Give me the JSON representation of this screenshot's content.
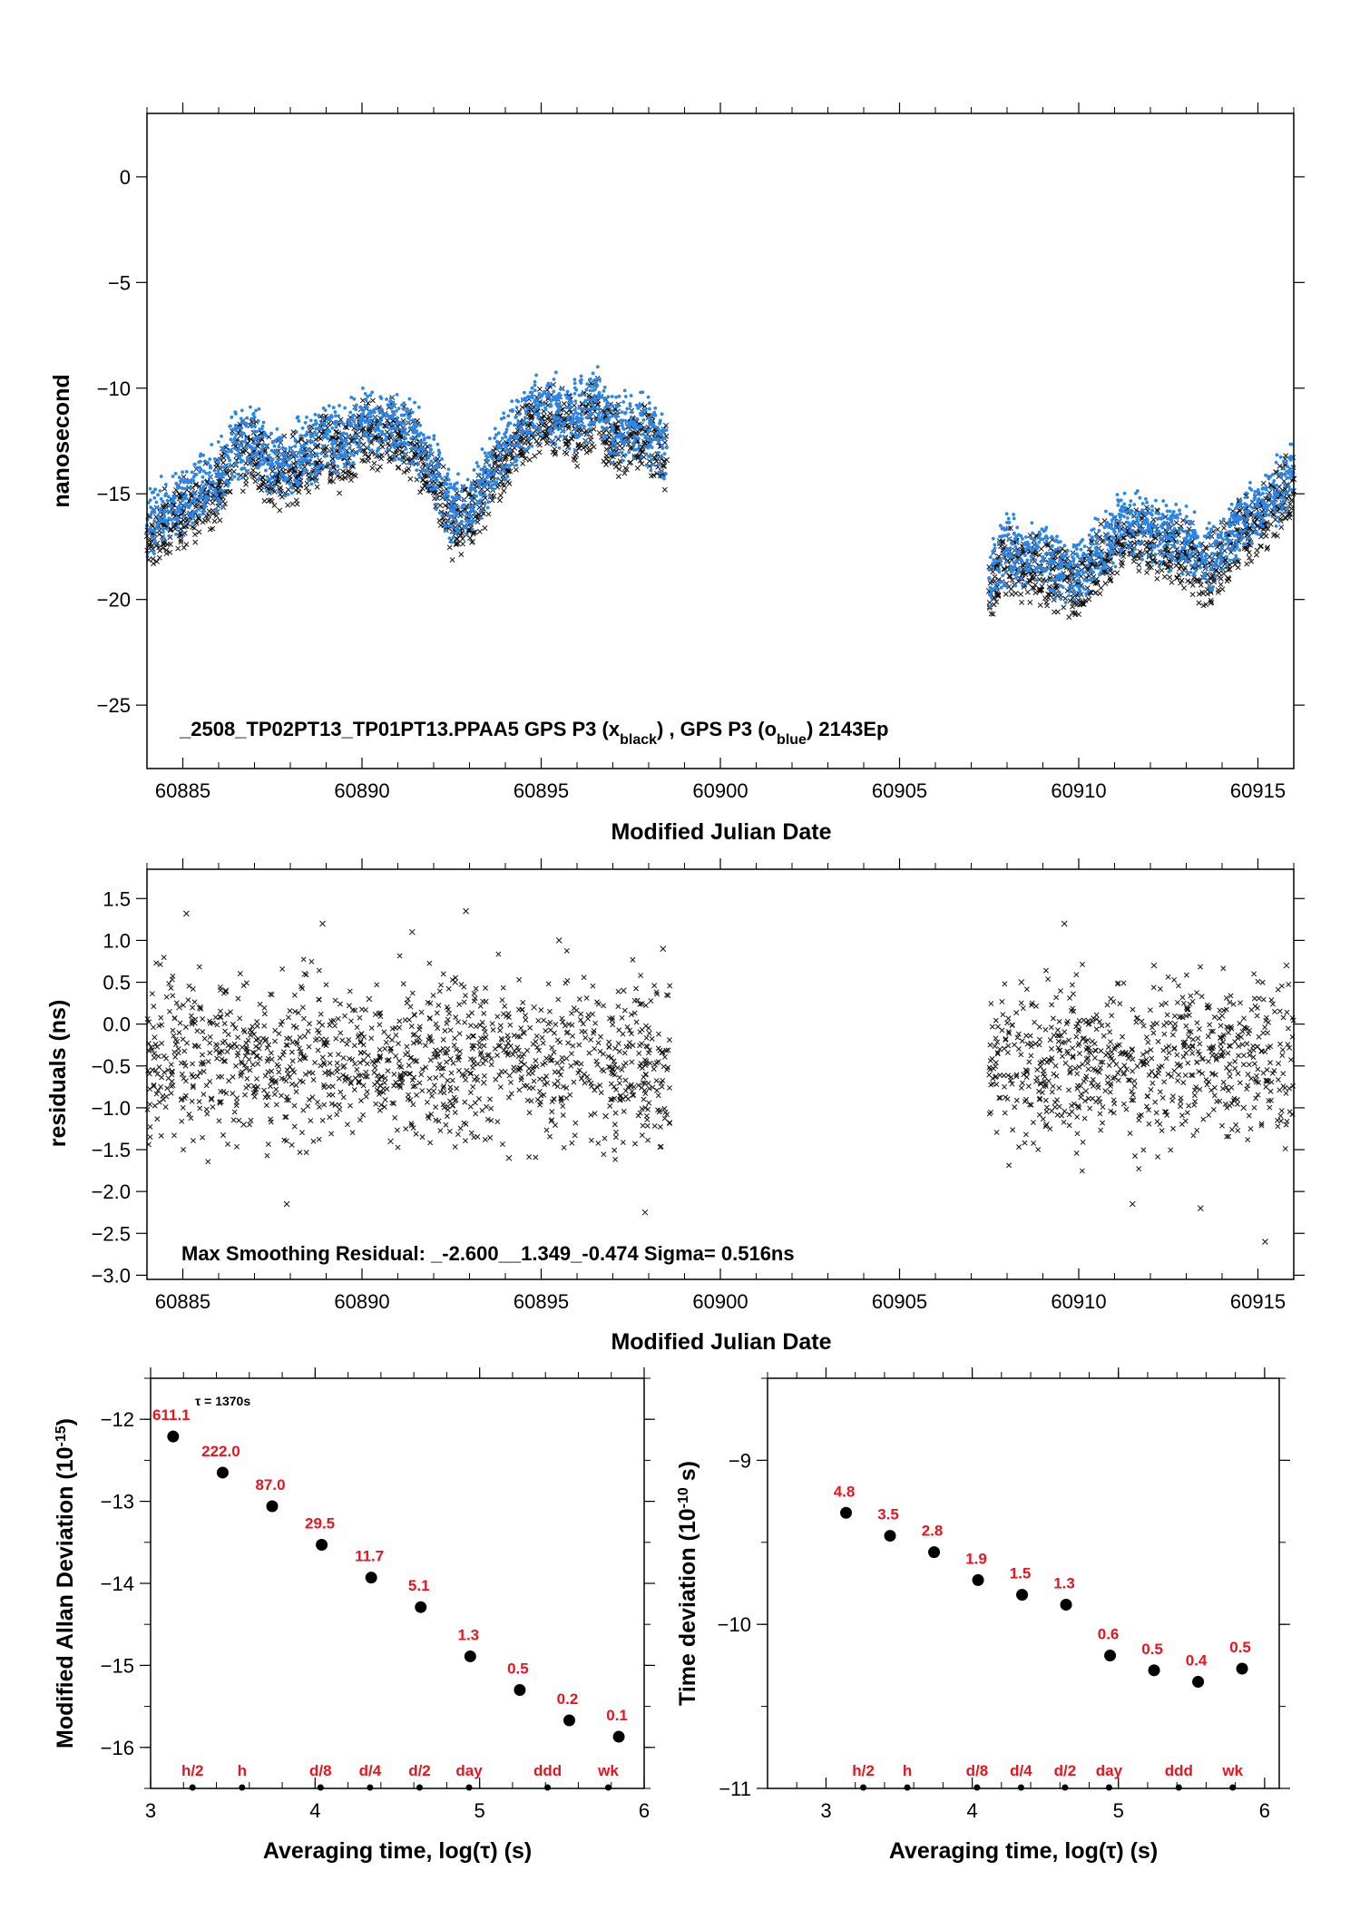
{
  "colors": {
    "black_series": "#111111",
    "blue_series": "#2a86e8",
    "label_red": "#e8141e",
    "frame": "#000000"
  },
  "chart_data": [
    {
      "type": "scatter",
      "title": "_2508_TP02PT13_TP01PT13.PPAA5     GPS P3 (x",
      "title_parts": {
        "a": "_2508_TP02PT13_TP01PT13.PPAA5     GPS P3 (x",
        "a_sub": "black",
        "b": ") ,  GPS P3 (o",
        "b_sub": "blue",
        "c": ")  2143Ep"
      },
      "xlabel": "Modified Julian Date",
      "ylabel": "nanosecond",
      "xlim": [
        60884,
        60916
      ],
      "ylim": [
        -28,
        3
      ],
      "xticks": [
        "60885",
        "60890",
        "60895",
        "60900",
        "60905",
        "60910",
        "60915"
      ],
      "yticks": [
        "0",
        "−5",
        "−10",
        "−15",
        "−20",
        "−25"
      ],
      "series": [
        {
          "name": "GPS P3 (x black)",
          "marker": "x",
          "x": [
            60884.0,
            60884.5,
            60885.0,
            60885.5,
            60886.0,
            60886.5,
            60887.0,
            60887.5,
            60888.0,
            60888.5,
            60889.0,
            60889.5,
            60890.0,
            60890.5,
            60891.0,
            60891.5,
            60892.0,
            60892.5,
            60893.0,
            60893.5,
            60894.0,
            60894.5,
            60895.0,
            60895.5,
            60896.0,
            60896.5,
            60897.0,
            60897.5,
            60898.0,
            60898.5,
            60907.5,
            60908.0,
            60908.5,
            60909.0,
            60909.5,
            60910.0,
            60910.5,
            60911.0,
            60911.5,
            60912.0,
            60912.5,
            60913.0,
            60913.5,
            60914.0,
            60914.5,
            60915.0,
            60915.5,
            60916.0
          ],
          "y": [
            -17.0,
            -16.4,
            -15.9,
            -15.4,
            -14.8,
            -13.2,
            -13.0,
            -14.2,
            -13.9,
            -13.5,
            -12.8,
            -13.3,
            -12.0,
            -12.3,
            -12.2,
            -13.0,
            -14.4,
            -16.4,
            -16.2,
            -14.8,
            -13.3,
            -12.2,
            -11.4,
            -11.7,
            -12.0,
            -11.1,
            -12.5,
            -12.3,
            -12.6,
            -13.4,
            -19.6,
            -18.2,
            -18.5,
            -18.6,
            -19.0,
            -19.3,
            -18.4,
            -17.4,
            -17.0,
            -17.3,
            -17.7,
            -17.8,
            -18.8,
            -18.1,
            -16.8,
            -16.5,
            -15.6,
            -14.3
          ]
        },
        {
          "name": "GPS P3 (o blue)",
          "marker": "o",
          "x": [
            60884.0,
            60884.5,
            60885.0,
            60885.5,
            60886.0,
            60886.5,
            60887.0,
            60887.5,
            60888.0,
            60888.5,
            60889.0,
            60889.5,
            60890.0,
            60890.5,
            60891.0,
            60891.5,
            60892.0,
            60892.5,
            60893.0,
            60893.5,
            60894.0,
            60894.5,
            60895.0,
            60895.5,
            60896.0,
            60896.5,
            60897.0,
            60897.5,
            60898.0,
            60898.5,
            60907.5,
            60908.0,
            60908.5,
            60909.0,
            60909.5,
            60910.0,
            60910.5,
            60911.0,
            60911.5,
            60912.0,
            60912.5,
            60913.0,
            60913.5,
            60914.0,
            60914.5,
            60915.0,
            60915.5,
            60916.0
          ],
          "y": [
            -16.5,
            -15.8,
            -15.3,
            -14.8,
            -14.2,
            -12.6,
            -12.4,
            -13.6,
            -13.3,
            -12.9,
            -12.2,
            -12.7,
            -11.4,
            -11.7,
            -11.6,
            -12.4,
            -13.8,
            -15.8,
            -15.6,
            -14.2,
            -12.7,
            -11.6,
            -10.8,
            -11.1,
            -11.4,
            -10.5,
            -11.9,
            -11.7,
            -12.0,
            -12.8,
            -19.0,
            -17.6,
            -17.9,
            -18.0,
            -18.4,
            -18.7,
            -17.8,
            -16.8,
            -16.4,
            -16.7,
            -17.1,
            -17.2,
            -18.2,
            -17.5,
            -16.2,
            -15.9,
            -15.0,
            -13.7
          ]
        }
      ]
    },
    {
      "type": "scatter",
      "xlabel": "Modified Julian Date",
      "ylabel": "residuals (ns)",
      "xlim": [
        60884,
        60916
      ],
      "ylim": [
        -3.05,
        1.85
      ],
      "xticks": [
        "60885",
        "60890",
        "60895",
        "60900",
        "60905",
        "60910",
        "60915"
      ],
      "yticks": [
        "1.5",
        "1.0",
        "0.5",
        "0.0",
        "−0.5",
        "−1.0",
        "−1.5",
        "−2.0",
        "−2.5",
        "−3.0"
      ],
      "annotation": "Max Smoothing Residual: _-2.600__1.349_-0.474  Sigma= 0.516ns",
      "series": [
        {
          "name": "residuals",
          "marker": "x",
          "x": [
            60884.2,
            60884.9,
            60885.1,
            60885.8,
            60886.2,
            60886.7,
            60887.3,
            60887.9,
            60888.4,
            60888.9,
            60889.5,
            60890.2,
            60890.8,
            60891.4,
            60892.0,
            60892.6,
            60892.9,
            60893.4,
            60894.1,
            60894.8,
            60895.5,
            60896.2,
            60896.8,
            60897.3,
            60897.9,
            60898.4,
            60907.8,
            60908.4,
            60909.1,
            60909.6,
            60910.2,
            60910.9,
            60911.5,
            60912.1,
            60912.8,
            60913.4,
            60914.0,
            60914.6,
            60915.2,
            60915.8
          ],
          "y": [
            -0.4,
            0.2,
            1.32,
            -0.9,
            0.4,
            -1.2,
            -0.2,
            -2.15,
            0.6,
            1.2,
            -0.5,
            0.3,
            -1.4,
            1.1,
            -0.8,
            0.5,
            1.35,
            -0.7,
            -1.6,
            0.2,
            1.0,
            -0.6,
            -1.1,
            0.4,
            -2.25,
            0.9,
            -0.3,
            0.5,
            -1.2,
            1.2,
            -0.8,
            0.3,
            -2.15,
            0.7,
            -0.5,
            -2.2,
            0.1,
            -1.0,
            -2.6,
            0.7
          ]
        }
      ]
    },
    {
      "type": "scatter",
      "xlabel": "Averaging time, log(τ) (s)",
      "ylabel": "Modified Allan Deviation (10",
      "ylabel_sup": "-15",
      "ylabel_tail": ")",
      "xlim": [
        3,
        6
      ],
      "ylim": [
        -16.5,
        -11.5
      ],
      "xticks": [
        "3",
        "4",
        "5",
        "6"
      ],
      "yticks": [
        "−12",
        "−13",
        "−14",
        "−15",
        "−16"
      ],
      "tau_note": "τ = 1370s",
      "x": [
        3.137,
        3.438,
        3.739,
        4.04,
        4.341,
        4.642,
        4.943,
        5.244,
        5.545,
        5.846
      ],
      "y": [
        -12.21,
        -12.65,
        -13.06,
        -13.53,
        -13.93,
        -14.29,
        -14.89,
        -15.3,
        -15.67,
        -15.87
      ],
      "point_labels": [
        "611.1",
        "222.0",
        "87.0",
        "29.5",
        "11.7",
        "5.1",
        "1.3",
        "0.5",
        "0.2",
        "0.1"
      ],
      "markers": [
        {
          "label": "h/2",
          "x": 3.255
        },
        {
          "label": "h",
          "x": 3.556
        },
        {
          "label": "d/8",
          "x": 4.033
        },
        {
          "label": "d/4",
          "x": 4.334
        },
        {
          "label": "d/2",
          "x": 4.635
        },
        {
          "label": "day",
          "x": 4.936
        },
        {
          "label": "ddd",
          "x": 5.413
        },
        {
          "label": "wk",
          "x": 5.782
        }
      ]
    },
    {
      "type": "scatter",
      "xlabel": "Averaging time, log(τ) (s)",
      "ylabel": "Time deviation (10",
      "ylabel_sup": "-10",
      "ylabel_tail": " s)",
      "xlim": [
        2.6,
        6.1
      ],
      "ylim": [
        -11.0,
        -8.5
      ],
      "xticks": [
        "3",
        "4",
        "5",
        "6"
      ],
      "yticks": [
        "−9",
        "−10",
        "−11"
      ],
      "x": [
        3.137,
        3.438,
        3.739,
        4.04,
        4.341,
        4.642,
        4.943,
        5.244,
        5.545,
        5.846
      ],
      "y": [
        -9.32,
        -9.46,
        -9.56,
        -9.73,
        -9.82,
        -9.88,
        -10.19,
        -10.28,
        -10.35,
        -10.27
      ],
      "point_labels": [
        "4.8",
        "3.5",
        "2.8",
        "1.9",
        "1.5",
        "1.3",
        "0.6",
        "0.5",
        "0.4",
        "0.5"
      ],
      "markers": [
        {
          "label": "h/2",
          "x": 3.255
        },
        {
          "label": "h",
          "x": 3.556
        },
        {
          "label": "d/8",
          "x": 4.033
        },
        {
          "label": "d/4",
          "x": 4.334
        },
        {
          "label": "d/2",
          "x": 4.635
        },
        {
          "label": "day",
          "x": 4.936
        },
        {
          "label": "ddd",
          "x": 5.413
        },
        {
          "label": "wk",
          "x": 5.782
        }
      ]
    }
  ]
}
